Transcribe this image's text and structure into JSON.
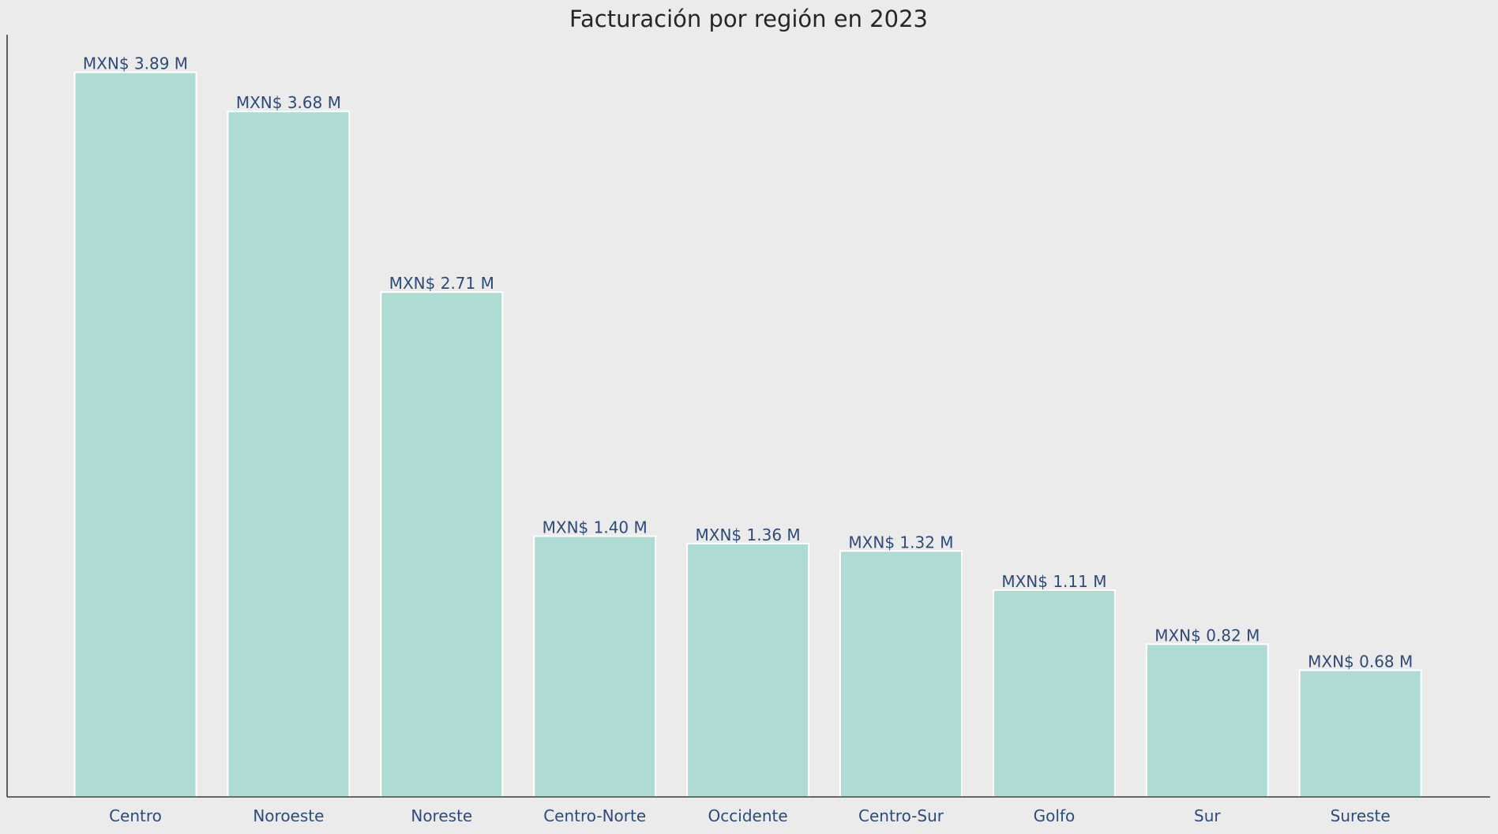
{
  "chart_data": {
    "type": "bar",
    "title": "Facturación por región en 2023",
    "xlabel": "",
    "ylabel": "",
    "categories": [
      "Centro",
      "Noroeste",
      "Noreste",
      "Centro-Norte",
      "Occidente",
      "Centro-Sur",
      "Golfo",
      "Sur",
      "Sureste"
    ],
    "values": [
      3.89,
      3.68,
      2.71,
      1.4,
      1.36,
      1.32,
      1.11,
      0.82,
      0.68
    ],
    "data_labels": [
      "MXN$ 3.89 M",
      "MXN$ 3.68 M",
      "MXN$ 2.71 M",
      "MXN$ 1.40 M",
      "MXN$ 1.36 M",
      "MXN$ 1.32 M",
      "MXN$ 1.11 M",
      "MXN$ 0.82 M",
      "MXN$ 0.68 M"
    ],
    "ylim": [
      0,
      4.1
    ],
    "grid": false,
    "legend": "none",
    "colors": {
      "bar": "#aedbd4",
      "bar_edge": "#ffffff",
      "label_text": "#2e4a7d",
      "title_text": "#262626",
      "background": "#ebebeb",
      "axis": "#3a3a3a"
    }
  }
}
